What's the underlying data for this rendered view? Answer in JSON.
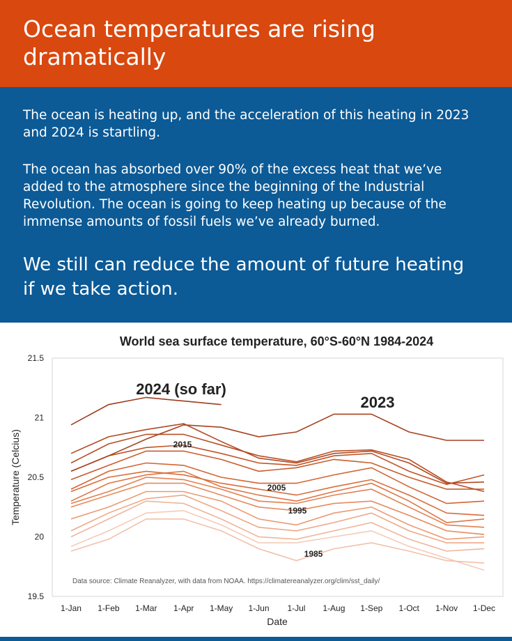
{
  "header": {
    "title": "Ocean temperatures are rising dramatically"
  },
  "body": {
    "paragraphs": [
      "The ocean is heating up, and the acceleration of this heating in 2023 and 2024 is startling.",
      "The ocean has absorbed over 90% of the excess heat that we’ve added to the atmosphere since the beginning of the Industrial Revolution. The ocean is going to keep heating up because of the  immense amounts of fossil fuels we’ve already burned."
    ],
    "callout": "We still can reduce the amount of future heating if we take action."
  },
  "chart_data": {
    "type": "line",
    "title": "World sea surface temperature, 60°S-60°N 1984-2024",
    "x_label": "Date",
    "y_label": "Temperature (Celcius)",
    "categories": [
      "1-Jan",
      "1-Feb",
      "1-Mar",
      "1-Apr",
      "1-May",
      "1-Jun",
      "1-Jul",
      "1-Aug",
      "1-Sep",
      "1-Oct",
      "1-Nov",
      "1-Dec"
    ],
    "ylim": [
      19.5,
      21.5
    ],
    "yticks": [
      19.5,
      20,
      20.5,
      21,
      21.5
    ],
    "note": "Data source: Climate Reanalyzer, with data from NOAA. https://climatereanalyzer.org/clim/sst_daily/",
    "series": [
      {
        "name": "2024 (so far)",
        "color": "#9e3d1c",
        "values": [
          20.94,
          21.11,
          21.17,
          21.14,
          21.11,
          null,
          null,
          null,
          null,
          null,
          null,
          null
        ]
      },
      {
        "name": "2023",
        "color": "#a5421e",
        "values": [
          20.55,
          20.68,
          20.82,
          20.94,
          20.92,
          20.84,
          20.88,
          21.03,
          21.03,
          20.88,
          20.81,
          20.81
        ]
      },
      {
        "color": "#b04a22",
        "values": [
          20.7,
          20.84,
          20.9,
          20.95,
          20.8,
          20.66,
          20.62,
          20.7,
          20.72,
          20.62,
          20.45,
          20.46
        ]
      },
      {
        "name": "2015",
        "color": "#b84e24",
        "values": [
          20.62,
          20.78,
          20.86,
          20.86,
          20.77,
          20.68,
          20.63,
          20.72,
          20.73,
          20.65,
          20.46,
          20.38
        ]
      },
      {
        "color": "#c05528",
        "values": [
          20.55,
          20.68,
          20.75,
          20.77,
          20.7,
          20.62,
          20.6,
          20.68,
          20.7,
          20.55,
          20.44,
          20.52
        ]
      },
      {
        "color": "#c85c2c",
        "values": [
          20.48,
          20.6,
          20.72,
          20.72,
          20.65,
          20.55,
          20.58,
          20.65,
          20.62,
          20.5,
          20.4,
          20.4
        ]
      },
      {
        "color": "#d26432",
        "values": [
          20.4,
          20.55,
          20.62,
          20.6,
          20.5,
          20.45,
          20.45,
          20.52,
          20.58,
          20.42,
          20.28,
          20.3
        ]
      },
      {
        "name": "2005",
        "color": "#d96c3a",
        "values": [
          20.38,
          20.5,
          20.55,
          20.52,
          20.45,
          20.4,
          20.35,
          20.42,
          20.48,
          20.35,
          20.2,
          20.18
        ]
      },
      {
        "color": "#df7544",
        "values": [
          20.3,
          20.45,
          20.52,
          20.55,
          20.42,
          20.35,
          20.3,
          20.38,
          20.45,
          20.3,
          20.12,
          20.15
        ]
      },
      {
        "color": "#e37f50",
        "values": [
          20.28,
          20.38,
          20.5,
          20.48,
          20.4,
          20.3,
          20.28,
          20.35,
          20.4,
          20.25,
          20.1,
          20.08
        ]
      },
      {
        "name": "1995",
        "color": "#e68a5e",
        "values": [
          20.25,
          20.35,
          20.45,
          20.45,
          20.35,
          20.25,
          20.22,
          20.28,
          20.3,
          20.18,
          20.05,
          20.02
        ]
      },
      {
        "color": "#ea9a72",
        "values": [
          20.15,
          20.25,
          20.38,
          20.38,
          20.3,
          20.15,
          20.1,
          20.2,
          20.25,
          20.1,
          19.98,
          20.0
        ]
      },
      {
        "color": "#eda886",
        "values": [
          20.05,
          20.2,
          20.32,
          20.35,
          20.22,
          20.08,
          20.05,
          20.12,
          20.2,
          20.05,
          19.95,
          19.95
        ]
      },
      {
        "color": "#f0b59a",
        "values": [
          20.0,
          20.15,
          20.3,
          20.28,
          20.15,
          20.0,
          19.98,
          20.05,
          20.12,
          19.98,
          19.88,
          19.9
        ]
      },
      {
        "name": "1985",
        "color": "#f2c0aa",
        "values": [
          19.88,
          19.98,
          20.15,
          20.15,
          20.05,
          19.9,
          19.8,
          19.9,
          19.95,
          19.88,
          19.8,
          19.78
        ]
      },
      {
        "color": "#f4cbb8",
        "values": [
          19.92,
          20.05,
          20.2,
          20.22,
          20.1,
          19.95,
          19.95,
          20.0,
          20.05,
          19.92,
          19.82,
          19.72
        ]
      }
    ]
  }
}
